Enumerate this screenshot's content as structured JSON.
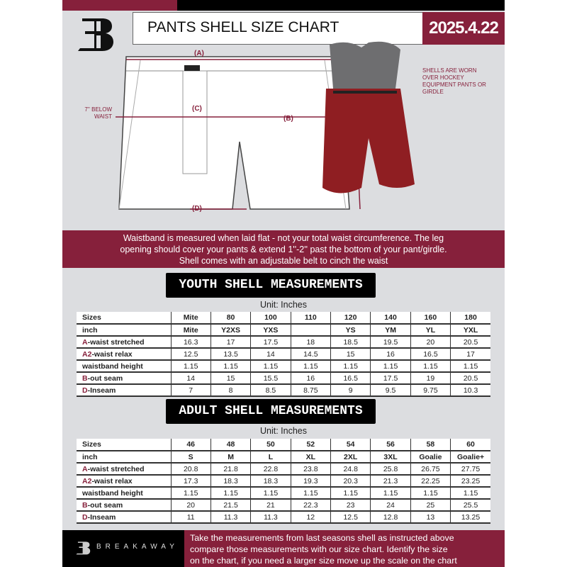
{
  "header": {
    "title": "PANTS SHELL SIZE CHART",
    "date": "2025.4.22",
    "logo": "B"
  },
  "diagram": {
    "label_a": "(A)",
    "label_b": "(B)",
    "label_c": "(C)",
    "label_d": "(D)",
    "note_left": "7'' BELOW WAIST",
    "note_right": "SHELLS ARE WORN OVER HOCKEY EQUIPMENT PANTS OR GIRDLE"
  },
  "band": {
    "lines": [
      "Waistband is measured when laid flat - not your total waist circumference. The leg",
      "opening should cover your pants & extend 1''-2'' past the bottom of your pant/girdle.",
      "Shell comes with an adjustable belt to cinch the waist"
    ]
  },
  "youth": {
    "title": "YOUTH SHELL MEASUREMENTS",
    "unit": "Unit: Inches",
    "rows": [
      {
        "p": "",
        "l": "Sizes",
        "v": [
          "Mite",
          "80",
          "100",
          "110",
          "120",
          "140",
          "160",
          "180"
        ]
      },
      {
        "p": "",
        "l": "inch",
        "v": [
          "Mite",
          "Y2XS",
          "YXS",
          "",
          "YS",
          "YM",
          "YL",
          "YXL"
        ]
      },
      {
        "p": "A",
        "l": "-waist stretched",
        "v": [
          "16.3",
          "17",
          "17.5",
          "18",
          "18.5",
          "19.5",
          "20",
          "20.5"
        ]
      },
      {
        "p": "A2",
        "l": "-waist relax",
        "v": [
          "12.5",
          "13.5",
          "14",
          "14.5",
          "15",
          "16",
          "16.5",
          "17"
        ]
      },
      {
        "p": "",
        "l": "waistband height",
        "v": [
          "1.15",
          "1.15",
          "1.15",
          "1.15",
          "1.15",
          "1.15",
          "1.15",
          "1.15"
        ]
      },
      {
        "p": "B",
        "l": "-out seam",
        "v": [
          "14",
          "15",
          "15.5",
          "16",
          "16.5",
          "17.5",
          "19",
          "20.5"
        ]
      },
      {
        "p": "D",
        "l": "-Inseam",
        "v": [
          "7",
          "8",
          "8.5",
          "8.75",
          "9",
          "9.5",
          "9.75",
          "10.3"
        ]
      }
    ]
  },
  "adult": {
    "title": "ADULT SHELL MEASUREMENTS",
    "unit": "Unit: Inches",
    "rows": [
      {
        "p": "",
        "l": "Sizes",
        "v": [
          "46",
          "48",
          "50",
          "52",
          "54",
          "56",
          "58",
          "60"
        ]
      },
      {
        "p": "",
        "l": "inch",
        "v": [
          "S",
          "M",
          "L",
          "XL",
          "2XL",
          "3XL",
          "Goalie",
          "Goalie+"
        ]
      },
      {
        "p": "A",
        "l": "-waist stretched",
        "v": [
          "20.8",
          "21.8",
          "22.8",
          "23.8",
          "24.8",
          "25.8",
          "26.75",
          "27.75"
        ]
      },
      {
        "p": "A2",
        "l": "-waist relax",
        "v": [
          "17.3",
          "18.3",
          "18.3",
          "19.3",
          "20.3",
          "21.3",
          "22.25",
          "23.25"
        ]
      },
      {
        "p": "",
        "l": "waistband height",
        "v": [
          "1.15",
          "1.15",
          "1.15",
          "1.15",
          "1.15",
          "1.15",
          "1.15",
          "1.15"
        ]
      },
      {
        "p": "B",
        "l": "-out seam",
        "v": [
          "20",
          "21.5",
          "21",
          "22.3",
          "23",
          "24",
          "25",
          "25.5"
        ]
      },
      {
        "p": "D",
        "l": "-Inseam",
        "v": [
          "11",
          "11.3",
          "11.3",
          "12",
          "12.5",
          "12.8",
          "13",
          "13.25"
        ]
      }
    ]
  },
  "footer": {
    "brand": "BREAKAWAY",
    "lines": [
      "Take the measurements from last seasons shell as instructed above",
      "compare those measurements  with our size chart. Identify the size",
      "on the chart, if you need a larger size move up the scale on the chart"
    ]
  },
  "colors": {
    "accent": "#86203b",
    "dark": "#000000",
    "bg": "#dcdde0"
  }
}
